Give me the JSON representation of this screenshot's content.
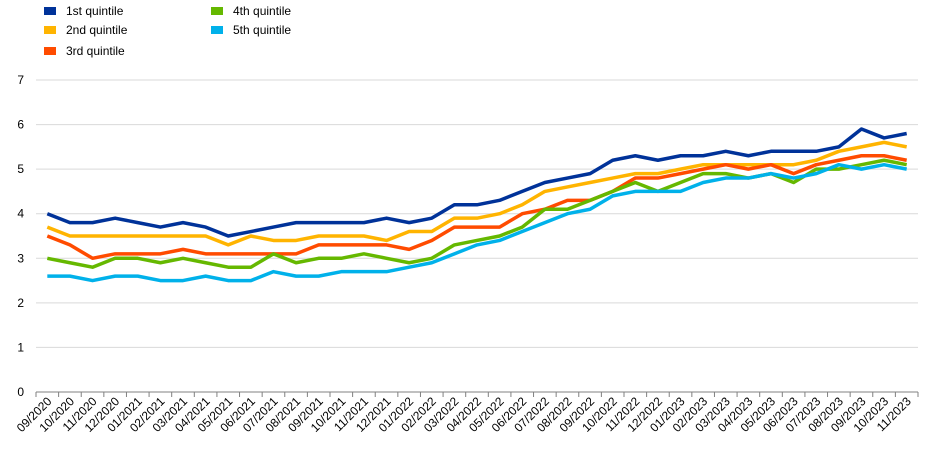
{
  "chart_data": {
    "type": "line",
    "title": "",
    "xlabel": "",
    "ylabel": "",
    "ylim": [
      0,
      7
    ],
    "yticks": [
      "0",
      "1",
      "2",
      "3",
      "4",
      "5",
      "6",
      "7"
    ],
    "grid": "horizontal",
    "legend_position": "top-left",
    "categories": [
      "09/2020",
      "10/2020",
      "11/2020",
      "12/2020",
      "01/2021",
      "02/2021",
      "03/2021",
      "04/2021",
      "05/2021",
      "06/2021",
      "07/2021",
      "08/2021",
      "09/2021",
      "10/2021",
      "11/2021",
      "12/2021",
      "01/2022",
      "02/2022",
      "03/2022",
      "04/2022",
      "05/2022",
      "06/2022",
      "07/2022",
      "08/2022",
      "09/2022",
      "10/2022",
      "11/2022",
      "12/2022",
      "01/2023",
      "02/2023",
      "03/2023",
      "04/2023",
      "05/2023",
      "06/2023",
      "07/2023",
      "08/2023",
      "09/2023",
      "10/2023",
      "11/2023"
    ],
    "series": [
      {
        "name": "1st quintile",
        "color": "#003299",
        "values": [
          4.0,
          3.8,
          3.8,
          3.9,
          3.8,
          3.7,
          3.8,
          3.7,
          3.5,
          3.6,
          3.7,
          3.8,
          3.8,
          3.8,
          3.8,
          3.9,
          3.8,
          3.9,
          4.2,
          4.2,
          4.3,
          4.5,
          4.7,
          4.8,
          4.9,
          5.2,
          5.3,
          5.2,
          5.3,
          5.3,
          5.4,
          5.3,
          5.4,
          5.4,
          5.4,
          5.5,
          5.9,
          5.7,
          5.8
        ]
      },
      {
        "name": "2nd quintile",
        "color": "#FFB400",
        "values": [
          3.7,
          3.5,
          3.5,
          3.5,
          3.5,
          3.5,
          3.5,
          3.5,
          3.3,
          3.5,
          3.4,
          3.4,
          3.5,
          3.5,
          3.5,
          3.4,
          3.6,
          3.6,
          3.9,
          3.9,
          4.0,
          4.2,
          4.5,
          4.6,
          4.7,
          4.8,
          4.9,
          4.9,
          5.0,
          5.1,
          5.1,
          5.1,
          5.1,
          5.1,
          5.2,
          5.4,
          5.5,
          5.6,
          5.5
        ]
      },
      {
        "name": "3rd quintile",
        "color": "#FF4B00",
        "values": [
          3.5,
          3.3,
          3.0,
          3.1,
          3.1,
          3.1,
          3.2,
          3.1,
          3.1,
          3.1,
          3.1,
          3.1,
          3.3,
          3.3,
          3.3,
          3.3,
          3.2,
          3.4,
          3.7,
          3.7,
          3.7,
          4.0,
          4.1,
          4.3,
          4.3,
          4.5,
          4.8,
          4.8,
          4.9,
          5.0,
          5.1,
          5.0,
          5.1,
          4.9,
          5.1,
          5.2,
          5.3,
          5.3,
          5.2
        ]
      },
      {
        "name": "4th quintile",
        "color": "#65B800",
        "values": [
          3.0,
          2.9,
          2.8,
          3.0,
          3.0,
          2.9,
          3.0,
          2.9,
          2.8,
          2.8,
          3.1,
          2.9,
          3.0,
          3.0,
          3.1,
          3.0,
          2.9,
          3.0,
          3.3,
          3.4,
          3.5,
          3.7,
          4.1,
          4.1,
          4.3,
          4.5,
          4.7,
          4.5,
          4.7,
          4.9,
          4.9,
          4.8,
          4.9,
          4.7,
          5.0,
          5.0,
          5.1,
          5.2,
          5.1
        ]
      },
      {
        "name": "5th quintile",
        "color": "#00B1EA",
        "values": [
          2.6,
          2.6,
          2.5,
          2.6,
          2.6,
          2.5,
          2.5,
          2.6,
          2.5,
          2.5,
          2.7,
          2.6,
          2.6,
          2.7,
          2.7,
          2.7,
          2.8,
          2.9,
          3.1,
          3.3,
          3.4,
          3.6,
          3.8,
          4.0,
          4.1,
          4.4,
          4.5,
          4.5,
          4.5,
          4.7,
          4.8,
          4.8,
          4.9,
          4.8,
          4.9,
          5.1,
          5.0,
          5.1,
          5.0
        ]
      }
    ]
  }
}
